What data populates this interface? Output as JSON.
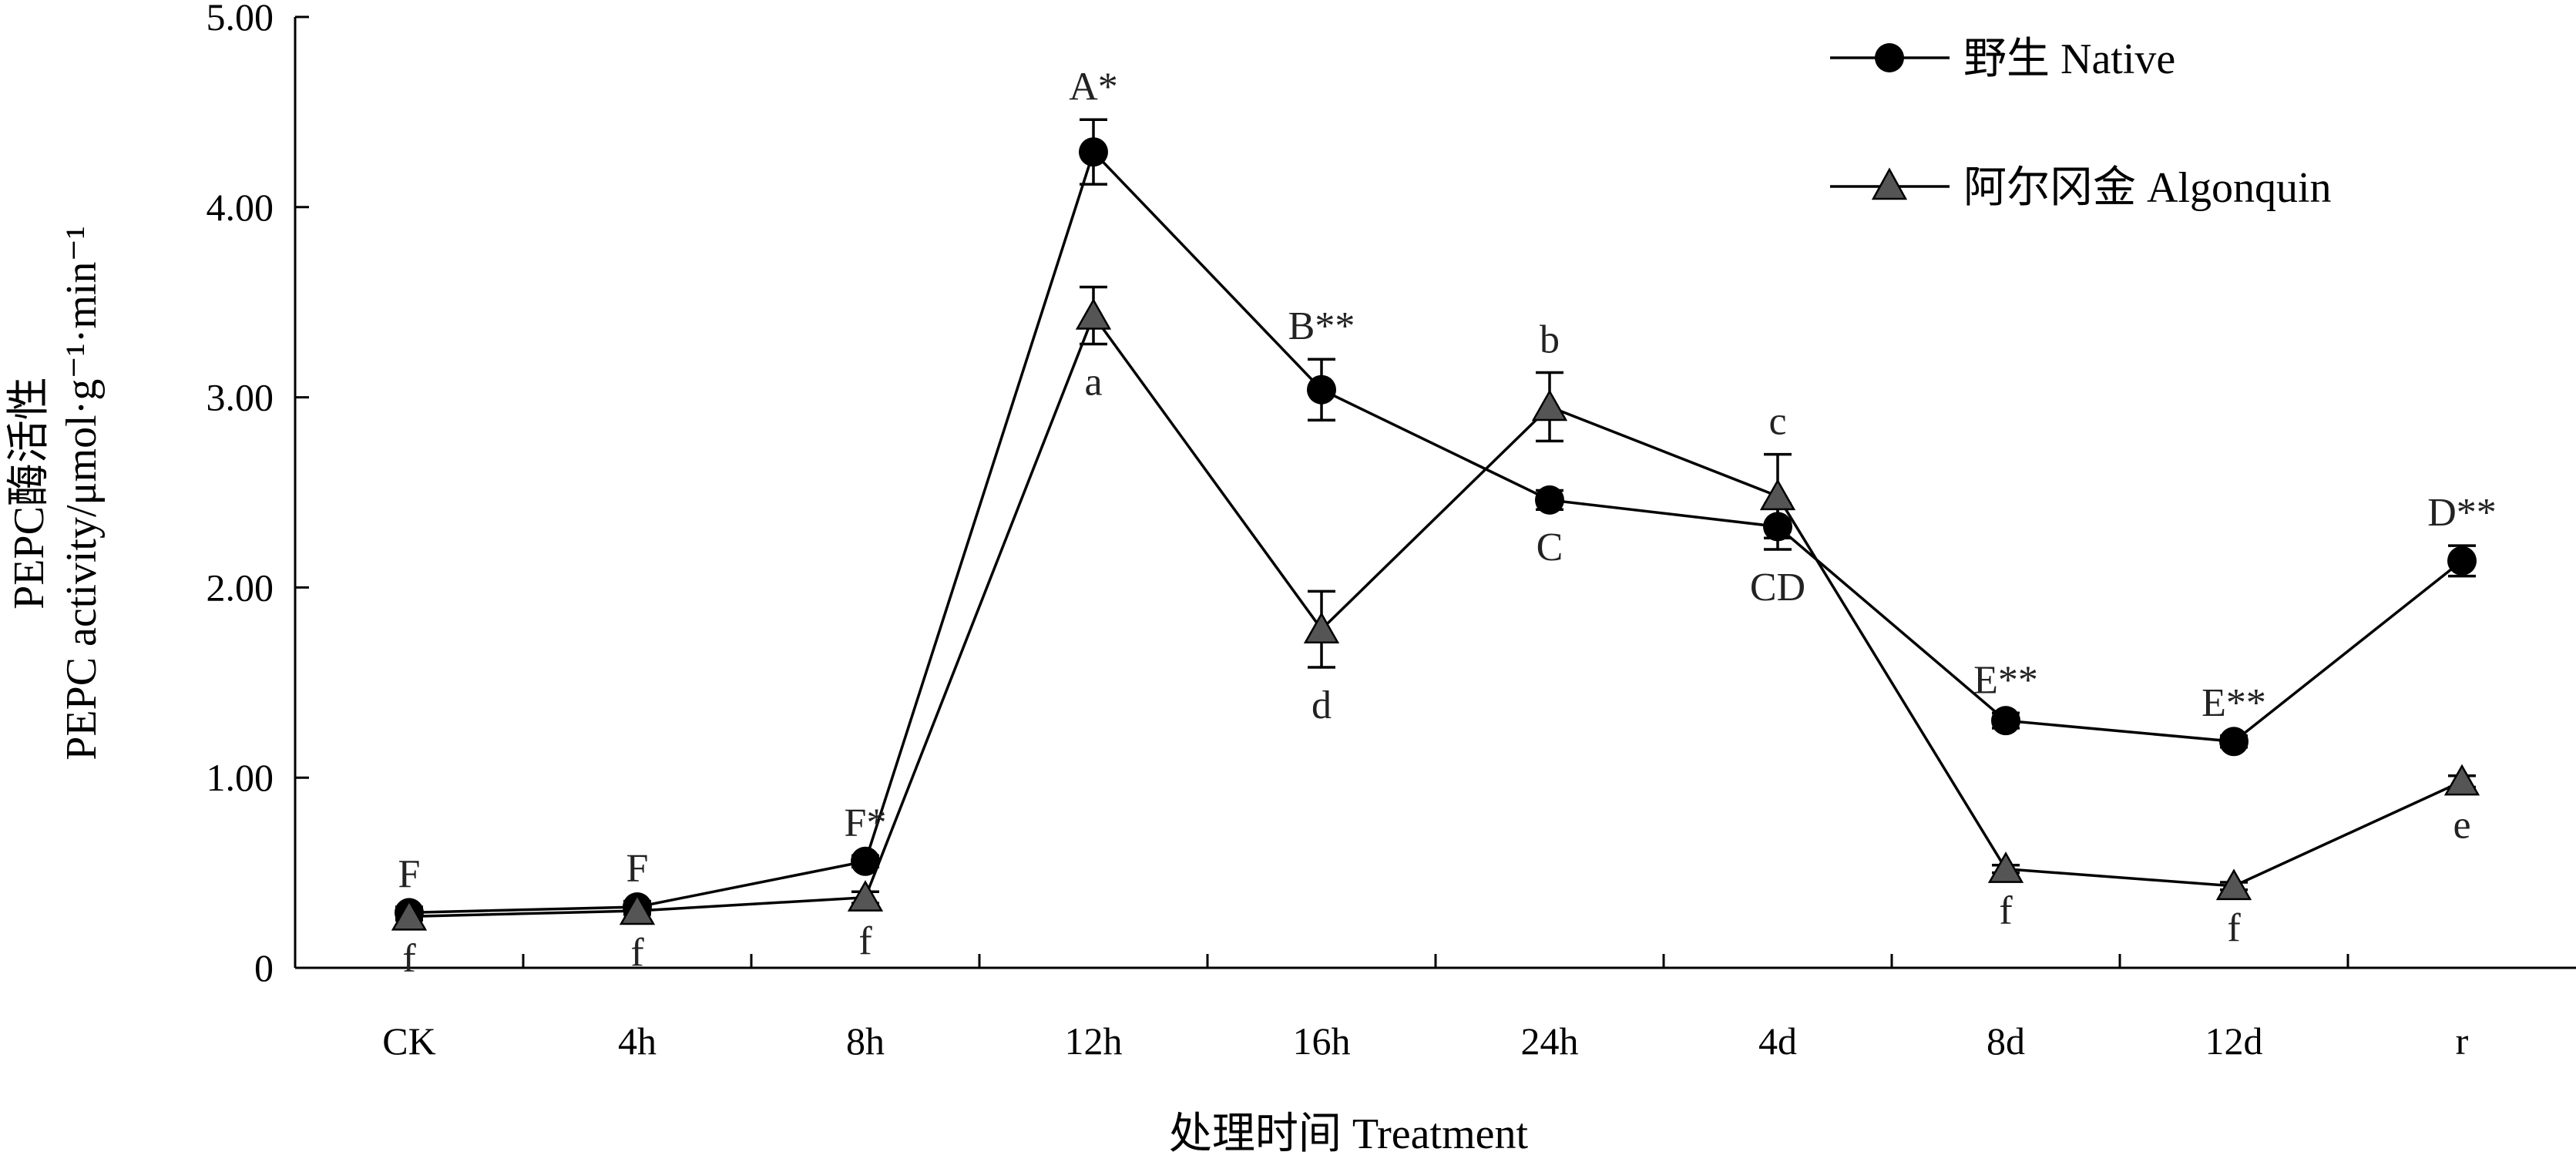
{
  "chart_data": {
    "type": "line",
    "categories": [
      "CK",
      "4h",
      "8h",
      "12h",
      "16h",
      "24h",
      "4d",
      "8d",
      "12d",
      "r"
    ],
    "xlabel": "处理时间 Treatment",
    "ylabel_line1": "PEPC酶活性",
    "ylabel_line2": "PEPC activity/μmol·g⁻¹·min⁻¹",
    "ylim": [
      0,
      5
    ],
    "yticks": [
      "0",
      "1.00",
      "2.00",
      "3.00",
      "4.00",
      "5.00"
    ],
    "ytick_values": [
      0,
      1,
      2,
      3,
      4,
      5
    ],
    "grid": false,
    "legend_position": "top-right",
    "series": [
      {
        "name": "野生 Native",
        "marker": "circle",
        "values": [
          0.29,
          0.32,
          0.56,
          4.29,
          3.04,
          2.46,
          2.32,
          1.3,
          1.19,
          2.14
        ],
        "errors": [
          0.03,
          0.03,
          0.03,
          0.17,
          0.16,
          0.05,
          0.12,
          0.04,
          0.03,
          0.08
        ],
        "labels": [
          "F",
          "F",
          "F*",
          "A*",
          "B**",
          "C",
          "CD",
          "E**",
          "E**",
          "D**"
        ],
        "label_pos": [
          "above",
          "above",
          "above",
          "above",
          "above",
          "below",
          "below",
          "above",
          "above",
          "above"
        ]
      },
      {
        "name": "阿尔冈金 Algonquin",
        "marker": "triangle",
        "values": [
          0.27,
          0.3,
          0.37,
          3.43,
          1.78,
          2.95,
          2.48,
          0.52,
          0.43,
          0.98
        ],
        "errors": [
          0.02,
          0.02,
          0.03,
          0.15,
          0.2,
          0.18,
          0.22,
          0.02,
          0.02,
          0.03
        ],
        "labels": [
          "f",
          "f",
          "f",
          "a",
          "d",
          "b",
          "c",
          "f",
          "f",
          "e"
        ],
        "label_pos": [
          "below",
          "below",
          "below",
          "below",
          "below",
          "above",
          "above",
          "below",
          "below",
          "below"
        ]
      }
    ]
  }
}
